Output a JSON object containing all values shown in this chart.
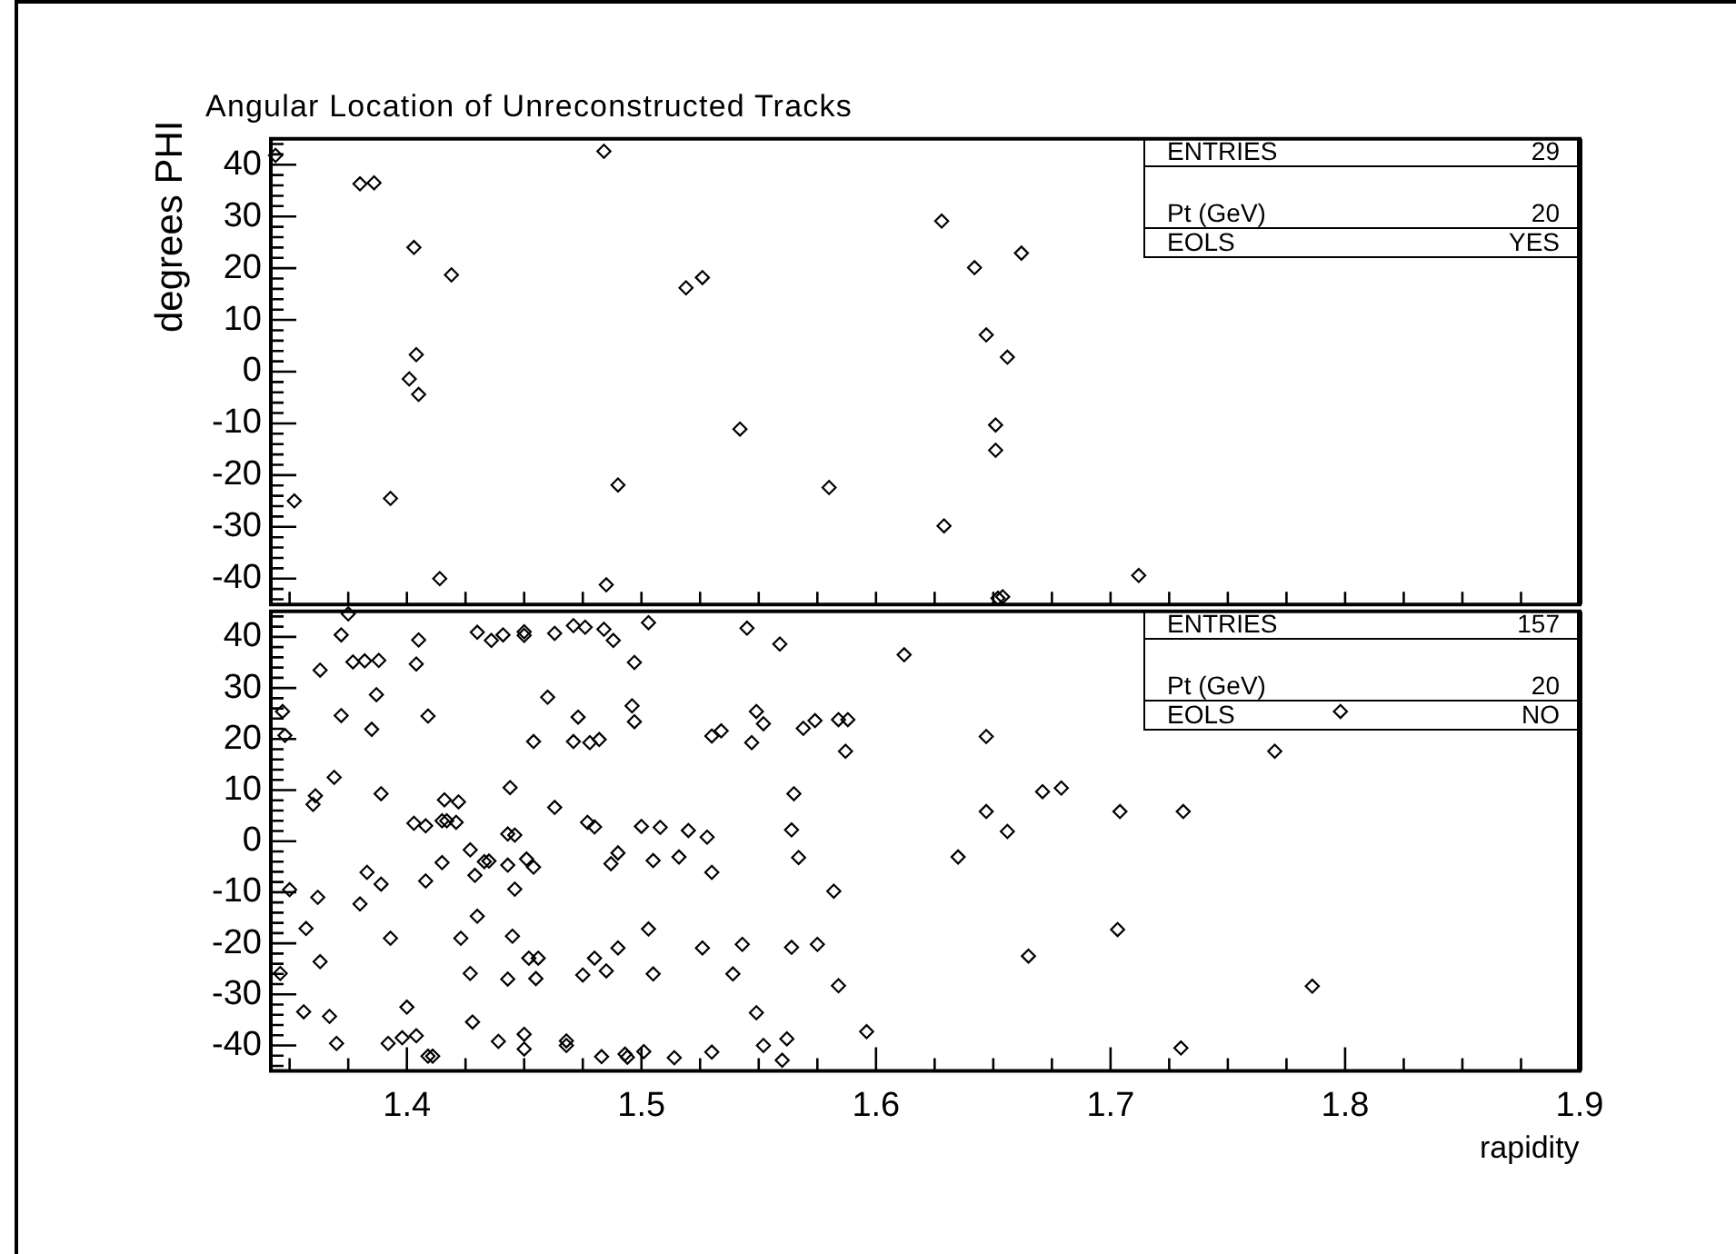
{
  "chart_data": [
    {
      "type": "scatter",
      "title": "Angular Location of Unreconstructed Tracks",
      "ylabel": "degrees PHI",
      "tick_labels": "y",
      "marker": "diamond",
      "color": "#000000",
      "annotations": [
        "ENTRIES",
        "29",
        "Pt (GeV)",
        "20",
        "EOLS",
        "YES"
      ],
      "xlim": [
        1.342,
        1.9
      ],
      "xticks": [
        {
          "value": 1.35,
          "label": null
        },
        {
          "value": 1.375,
          "label": null
        },
        {
          "value": 1.4,
          "label": null
        },
        {
          "value": 1.425,
          "label": null
        },
        {
          "value": 1.45,
          "label": null
        },
        {
          "value": 1.475,
          "label": null
        },
        {
          "value": 1.5,
          "label": null
        },
        {
          "value": 1.525,
          "label": null
        },
        {
          "value": 1.55,
          "label": null
        },
        {
          "value": 1.575,
          "label": null
        },
        {
          "value": 1.6,
          "label": null
        },
        {
          "value": 1.625,
          "label": null
        },
        {
          "value": 1.65,
          "label": null
        },
        {
          "value": 1.675,
          "label": null
        },
        {
          "value": 1.7,
          "label": null
        },
        {
          "value": 1.725,
          "label": null
        },
        {
          "value": 1.75,
          "label": null
        },
        {
          "value": 1.775,
          "label": null
        },
        {
          "value": 1.8,
          "label": null
        },
        {
          "value": 1.825,
          "label": null
        },
        {
          "value": 1.85,
          "label": null
        },
        {
          "value": 1.875,
          "label": null
        },
        {
          "value": 1.9,
          "label": null
        }
      ],
      "ylim": [
        -45,
        45
      ],
      "yticks": [
        {
          "value": -44,
          "label": null
        },
        {
          "value": -42,
          "label": null
        },
        -40,
        {
          "value": -38,
          "label": null
        },
        {
          "value": -36,
          "label": null
        },
        {
          "value": -34,
          "label": null
        },
        {
          "value": -32,
          "label": null
        },
        -30,
        {
          "value": -28,
          "label": null
        },
        {
          "value": -26,
          "label": null
        },
        {
          "value": -24,
          "label": null
        },
        {
          "value": -22,
          "label": null
        },
        -20,
        {
          "value": -18,
          "label": null
        },
        {
          "value": -16,
          "label": null
        },
        {
          "value": -14,
          "label": null
        },
        {
          "value": -12,
          "label": null
        },
        -10,
        {
          "value": -8,
          "label": null
        },
        {
          "value": -6,
          "label": null
        },
        {
          "value": -4,
          "label": null
        },
        {
          "value": -2,
          "label": null
        },
        0,
        {
          "value": 2,
          "label": null
        },
        {
          "value": 4,
          "label": null
        },
        {
          "value": 6,
          "label": null
        },
        {
          "value": 8,
          "label": null
        },
        10,
        {
          "value": 12,
          "label": null
        },
        {
          "value": 14,
          "label": null
        },
        {
          "value": 16,
          "label": null
        },
        {
          "value": 18,
          "label": null
        },
        20,
        {
          "value": 22,
          "label": null
        },
        {
          "value": 24,
          "label": null
        },
        {
          "value": 26,
          "label": null
        },
        {
          "value": 28,
          "label": null
        },
        30,
        {
          "value": 32,
          "label": null
        },
        {
          "value": 34,
          "label": null
        },
        {
          "value": 36,
          "label": null
        },
        {
          "value": 38,
          "label": null
        },
        40,
        {
          "value": 42,
          "label": null
        },
        {
          "value": 44,
          "label": null
        }
      ],
      "x": [
        1.344,
        1.38,
        1.386,
        1.403,
        1.419,
        1.404,
        1.401,
        1.405,
        1.352,
        1.393,
        1.414,
        1.484,
        1.519,
        1.526,
        1.542,
        1.49,
        1.485,
        1.58,
        1.628,
        1.629,
        1.642,
        1.662,
        1.647,
        1.656,
        1.651,
        1.651,
        1.652,
        1.654,
        1.712
      ],
      "values": [
        41.8,
        36.3,
        36.5,
        24.0,
        18.7,
        3.3,
        -1.4,
        -4.4,
        -25.0,
        -24.5,
        -40.0,
        42.6,
        16.2,
        18.2,
        -11.1,
        -21.9,
        -41.2,
        -22.4,
        29.1,
        -29.8,
        20.1,
        22.9,
        7.1,
        2.8,
        -10.3,
        -15.2,
        -43.8,
        -43.5,
        -39.4
      ]
    },
    {
      "type": "scatter",
      "xlabel": "rapidity",
      "marker": "diamond",
      "color": "#000000",
      "annotations": [
        "ENTRIES",
        "157",
        "Pt (GeV)",
        "20",
        "EOLS",
        "NO"
      ],
      "xlim": [
        1.342,
        1.9
      ],
      "xticks": [
        {
          "value": 1.35,
          "label": null
        },
        {
          "value": 1.375,
          "label": null
        },
        1.4,
        {
          "value": 1.425,
          "label": null
        },
        {
          "value": 1.45,
          "label": null
        },
        {
          "value": 1.475,
          "label": null
        },
        1.5,
        {
          "value": 1.525,
          "label": null
        },
        {
          "value": 1.55,
          "label": null
        },
        {
          "value": 1.575,
          "label": null
        },
        1.6,
        {
          "value": 1.625,
          "label": null
        },
        {
          "value": 1.65,
          "label": null
        },
        {
          "value": 1.675,
          "label": null
        },
        1.7,
        {
          "value": 1.725,
          "label": null
        },
        {
          "value": 1.75,
          "label": null
        },
        {
          "value": 1.775,
          "label": null
        },
        1.8,
        {
          "value": 1.825,
          "label": null
        },
        {
          "value": 1.85,
          "label": null
        },
        {
          "value": 1.875,
          "label": null
        },
        1.9
      ],
      "ylim": [
        -45,
        45
      ],
      "yticks": [
        {
          "value": -44,
          "label": null
        },
        {
          "value": -42,
          "label": null
        },
        -40,
        {
          "value": -38,
          "label": null
        },
        {
          "value": -36,
          "label": null
        },
        {
          "value": -34,
          "label": null
        },
        {
          "value": -32,
          "label": null
        },
        -30,
        {
          "value": -28,
          "label": null
        },
        {
          "value": -26,
          "label": null
        },
        {
          "value": -24,
          "label": null
        },
        {
          "value": -22,
          "label": null
        },
        -20,
        {
          "value": -18,
          "label": null
        },
        {
          "value": -16,
          "label": null
        },
        {
          "value": -14,
          "label": null
        },
        {
          "value": -12,
          "label": null
        },
        -10,
        {
          "value": -8,
          "label": null
        },
        {
          "value": -6,
          "label": null
        },
        {
          "value": -4,
          "label": null
        },
        {
          "value": -2,
          "label": null
        },
        0,
        {
          "value": 2,
          "label": null
        },
        {
          "value": 4,
          "label": null
        },
        {
          "value": 6,
          "label": null
        },
        {
          "value": 8,
          "label": null
        },
        10,
        {
          "value": 12,
          "label": null
        },
        {
          "value": 14,
          "label": null
        },
        {
          "value": 16,
          "label": null
        },
        {
          "value": 18,
          "label": null
        },
        20,
        {
          "value": 22,
          "label": null
        },
        {
          "value": 24,
          "label": null
        },
        {
          "value": 26,
          "label": null
        },
        {
          "value": 28,
          "label": null
        },
        30,
        {
          "value": 32,
          "label": null
        },
        {
          "value": 34,
          "label": null
        },
        {
          "value": 36,
          "label": null
        },
        {
          "value": 38,
          "label": null
        },
        40,
        {
          "value": 42,
          "label": null
        },
        {
          "value": 44,
          "label": null
        }
      ],
      "x": [
        1.375,
        1.372,
        1.405,
        1.363,
        1.377,
        1.382,
        1.388,
        1.404,
        1.387,
        1.347,
        1.348,
        1.372,
        1.385,
        1.409,
        1.369,
        1.361,
        1.36,
        1.389,
        1.403,
        1.408,
        1.415,
        1.417,
        1.421,
        1.416,
        1.422,
        1.35,
        1.362,
        1.383,
        1.389,
        1.38,
        1.415,
        1.408,
        1.357,
        1.363,
        1.393,
        1.346,
        1.356,
        1.367,
        1.37,
        1.392,
        1.398,
        1.4,
        1.404,
        1.409,
        1.411,
        1.43,
        1.436,
        1.441,
        1.45,
        1.45,
        1.463,
        1.471,
        1.476,
        1.484,
        1.488,
        1.503,
        1.497,
        1.46,
        1.473,
        1.496,
        1.497,
        1.454,
        1.471,
        1.478,
        1.482,
        1.53,
        1.534,
        1.444,
        1.463,
        1.477,
        1.48,
        1.5,
        1.508,
        1.52,
        1.528,
        1.53,
        1.516,
        1.505,
        1.49,
        1.487,
        1.451,
        1.454,
        1.443,
        1.446,
        1.427,
        1.429,
        1.433,
        1.435,
        1.443,
        1.446,
        1.43,
        1.423,
        1.445,
        1.452,
        1.456,
        1.427,
        1.443,
        1.455,
        1.475,
        1.48,
        1.485,
        1.49,
        1.503,
        1.505,
        1.526,
        1.539,
        1.543,
        1.428,
        1.439,
        1.45,
        1.45,
        1.468,
        1.468,
        1.483,
        1.493,
        1.494,
        1.501,
        1.514,
        1.53,
        1.545,
        1.559,
        1.612,
        1.549,
        1.552,
        1.547,
        1.569,
        1.574,
        1.584,
        1.588,
        1.587,
        1.647,
        1.565,
        1.564,
        1.567,
        1.582,
        1.635,
        1.647,
        1.656,
        1.671,
        1.679,
        1.704,
        1.703,
        1.564,
        1.575,
        1.584,
        1.665,
        1.549,
        1.552,
        1.562,
        1.56,
        1.596,
        1.731,
        1.73,
        1.77,
        1.798,
        1.786
      ],
      "values": [
        44.5,
        40.4,
        39.4,
        33.5,
        35.1,
        35.3,
        35.4,
        34.7,
        28.7,
        25.4,
        20.7,
        24.6,
        21.9,
        24.5,
        12.5,
        8.9,
        7.2,
        9.3,
        3.5,
        3.0,
        4.0,
        4.0,
        3.7,
        8.1,
        7.7,
        -9.5,
        -11.0,
        -6.1,
        -8.4,
        -12.3,
        -4.2,
        -7.8,
        -17.1,
        -23.6,
        -19.0,
        -25.9,
        -33.4,
        -34.3,
        -39.6,
        -39.6,
        -38.5,
        -32.5,
        -38.1,
        -42.1,
        -42.1,
        40.9,
        39.3,
        40.4,
        41.0,
        40.3,
        40.7,
        42.2,
        41.9,
        41.5,
        39.3,
        42.8,
        35.0,
        28.2,
        24.3,
        26.5,
        23.4,
        19.5,
        19.5,
        19.3,
        19.9,
        20.6,
        21.6,
        10.5,
        6.6,
        3.7,
        2.8,
        2.9,
        2.7,
        2.1,
        0.8,
        -6.1,
        -3.1,
        -3.8,
        -2.3,
        -4.4,
        -3.5,
        -5.1,
        1.4,
        1.2,
        -1.7,
        -6.7,
        -4.0,
        -3.9,
        -4.7,
        -9.4,
        -14.7,
        -19.0,
        -18.6,
        -22.9,
        -22.9,
        -25.9,
        -27.0,
        -26.9,
        -26.2,
        -22.9,
        -25.4,
        -20.9,
        -17.2,
        -26.0,
        -20.9,
        -26.0,
        -20.2,
        -35.4,
        -39.2,
        -37.8,
        -40.7,
        -39.1,
        -40.0,
        -42.2,
        -41.7,
        -42.3,
        -41.2,
        -42.4,
        -41.3,
        41.7,
        38.6,
        36.5,
        25.4,
        23.0,
        19.3,
        22.1,
        23.6,
        23.8,
        23.8,
        17.6,
        20.5,
        9.3,
        2.2,
        -3.2,
        -9.8,
        -3.1,
        5.8,
        1.9,
        9.7,
        10.4,
        5.8,
        -17.3,
        -20.8,
        -20.2,
        -28.3,
        -22.5,
        -33.6,
        -40.0,
        -38.7,
        -42.9,
        -37.3,
        5.8,
        -40.5,
        17.6,
        25.4,
        -28.4
      ]
    }
  ]
}
